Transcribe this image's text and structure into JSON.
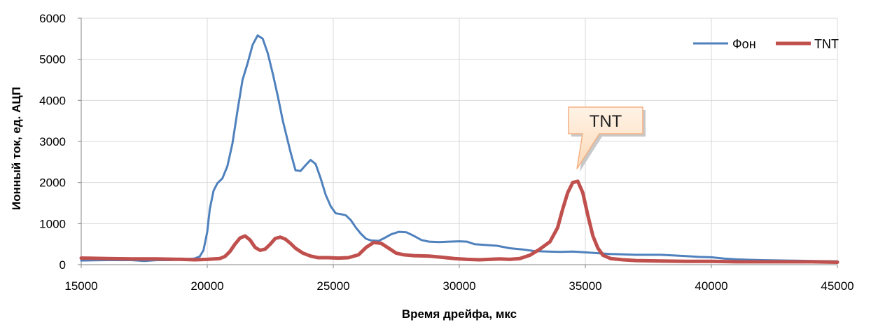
{
  "chart_data": {
    "type": "line",
    "title": "",
    "xlabel": "Время дрейфа, мкс",
    "ylabel": "Ионный ток, ед. АЦП",
    "xlim": [
      15000,
      45000
    ],
    "ylim": [
      0,
      6000
    ],
    "xticks": [
      15000,
      20000,
      25000,
      30000,
      35000,
      40000,
      45000
    ],
    "yticks": [
      0,
      1000,
      2000,
      3000,
      4000,
      5000,
      6000
    ],
    "grid": true,
    "legend_position": "top-right",
    "series": [
      {
        "name": "Фон",
        "color": "#4f81bd",
        "points": [
          [
            15000,
            100
          ],
          [
            16000,
            110
          ],
          [
            17000,
            110
          ],
          [
            17500,
            90
          ],
          [
            18000,
            110
          ],
          [
            18500,
            110
          ],
          [
            19000,
            130
          ],
          [
            19500,
            150
          ],
          [
            19700,
            200
          ],
          [
            19850,
            350
          ],
          [
            20000,
            800
          ],
          [
            20100,
            1350
          ],
          [
            20250,
            1800
          ],
          [
            20400,
            1980
          ],
          [
            20600,
            2100
          ],
          [
            20800,
            2400
          ],
          [
            21000,
            2950
          ],
          [
            21200,
            3750
          ],
          [
            21400,
            4500
          ],
          [
            21600,
            4900
          ],
          [
            21800,
            5350
          ],
          [
            22000,
            5580
          ],
          [
            22200,
            5500
          ],
          [
            22400,
            5150
          ],
          [
            22600,
            4650
          ],
          [
            22800,
            4100
          ],
          [
            23000,
            3500
          ],
          [
            23300,
            2750
          ],
          [
            23500,
            2300
          ],
          [
            23700,
            2280
          ],
          [
            23900,
            2420
          ],
          [
            24100,
            2550
          ],
          [
            24300,
            2450
          ],
          [
            24500,
            2100
          ],
          [
            24700,
            1700
          ],
          [
            24900,
            1420
          ],
          [
            25100,
            1250
          ],
          [
            25300,
            1230
          ],
          [
            25500,
            1200
          ],
          [
            25700,
            1080
          ],
          [
            25900,
            900
          ],
          [
            26100,
            750
          ],
          [
            26300,
            630
          ],
          [
            26500,
            590
          ],
          [
            26800,
            580
          ],
          [
            27000,
            640
          ],
          [
            27300,
            740
          ],
          [
            27600,
            800
          ],
          [
            27900,
            790
          ],
          [
            28200,
            700
          ],
          [
            28500,
            600
          ],
          [
            28800,
            560
          ],
          [
            29200,
            550
          ],
          [
            29600,
            560
          ],
          [
            30000,
            570
          ],
          [
            30300,
            560
          ],
          [
            30600,
            500
          ],
          [
            31000,
            480
          ],
          [
            31500,
            460
          ],
          [
            32000,
            400
          ],
          [
            32500,
            370
          ],
          [
            33000,
            330
          ],
          [
            33500,
            320
          ],
          [
            34000,
            310
          ],
          [
            34500,
            320
          ],
          [
            35000,
            300
          ],
          [
            35500,
            280
          ],
          [
            36000,
            260
          ],
          [
            37000,
            240
          ],
          [
            38000,
            240
          ],
          [
            39000,
            210
          ],
          [
            39500,
            190
          ],
          [
            40000,
            180
          ],
          [
            40500,
            150
          ],
          [
            41000,
            130
          ],
          [
            41500,
            120
          ],
          [
            42000,
            110
          ],
          [
            43000,
            100
          ],
          [
            44000,
            90
          ],
          [
            45000,
            80
          ]
        ]
      },
      {
        "name": "TNT",
        "color": "#c0504d",
        "points": [
          [
            15000,
            160
          ],
          [
            16000,
            150
          ],
          [
            17000,
            140
          ],
          [
            18000,
            140
          ],
          [
            19000,
            130
          ],
          [
            19500,
            120
          ],
          [
            20000,
            130
          ],
          [
            20500,
            150
          ],
          [
            20700,
            200
          ],
          [
            20900,
            320
          ],
          [
            21100,
            500
          ],
          [
            21300,
            650
          ],
          [
            21500,
            700
          ],
          [
            21700,
            600
          ],
          [
            21900,
            420
          ],
          [
            22100,
            350
          ],
          [
            22300,
            380
          ],
          [
            22500,
            500
          ],
          [
            22700,
            640
          ],
          [
            22900,
            670
          ],
          [
            23100,
            620
          ],
          [
            23300,
            520
          ],
          [
            23500,
            400
          ],
          [
            23800,
            280
          ],
          [
            24100,
            210
          ],
          [
            24400,
            170
          ],
          [
            24800,
            170
          ],
          [
            25200,
            160
          ],
          [
            25600,
            170
          ],
          [
            26000,
            240
          ],
          [
            26300,
            420
          ],
          [
            26600,
            540
          ],
          [
            26900,
            520
          ],
          [
            27200,
            400
          ],
          [
            27500,
            280
          ],
          [
            27800,
            240
          ],
          [
            28200,
            220
          ],
          [
            28800,
            210
          ],
          [
            29300,
            180
          ],
          [
            29800,
            150
          ],
          [
            30300,
            130
          ],
          [
            30800,
            120
          ],
          [
            31200,
            130
          ],
          [
            31600,
            140
          ],
          [
            32000,
            130
          ],
          [
            32400,
            150
          ],
          [
            32800,
            230
          ],
          [
            33200,
            380
          ],
          [
            33600,
            560
          ],
          [
            33900,
            900
          ],
          [
            34100,
            1350
          ],
          [
            34300,
            1750
          ],
          [
            34500,
            2000
          ],
          [
            34700,
            2030
          ],
          [
            34900,
            1750
          ],
          [
            35100,
            1200
          ],
          [
            35300,
            700
          ],
          [
            35500,
            400
          ],
          [
            35700,
            230
          ],
          [
            36000,
            150
          ],
          [
            36500,
            120
          ],
          [
            37000,
            100
          ],
          [
            38000,
            90
          ],
          [
            39000,
            80
          ],
          [
            40000,
            80
          ],
          [
            41000,
            70
          ],
          [
            42000,
            70
          ],
          [
            43000,
            70
          ],
          [
            44000,
            70
          ],
          [
            45000,
            60
          ]
        ]
      }
    ],
    "annotations": [
      {
        "text": "TNT",
        "target": [
          34500,
          2400
        ]
      }
    ]
  }
}
